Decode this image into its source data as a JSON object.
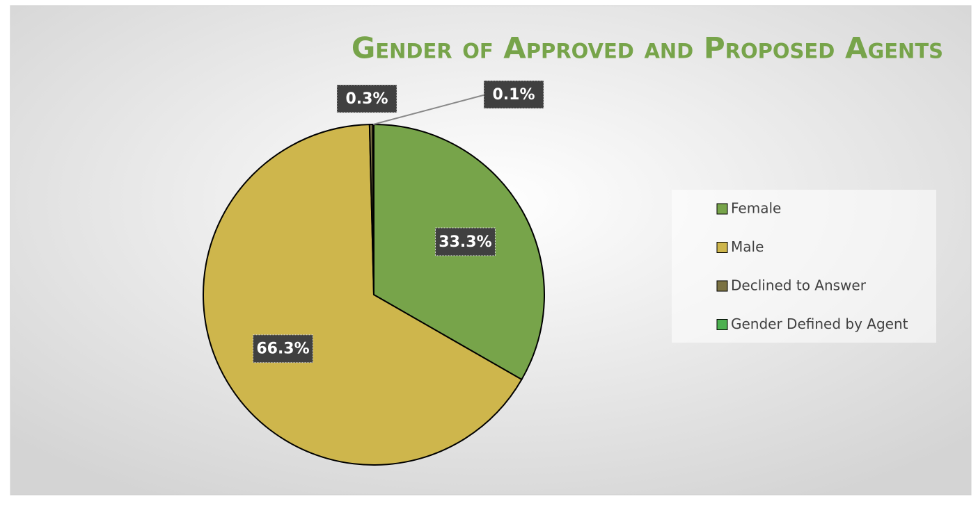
{
  "chart_data": {
    "type": "pie",
    "title": "Gender of Approved and Proposed Agents",
    "categories": [
      "Female",
      "Male",
      "Declined to Answer",
      "Gender Defined by Agent"
    ],
    "values": [
      33.3,
      66.3,
      0.3,
      0.1
    ],
    "value_labels": [
      "33.3%",
      "66.3%",
      "0.3%",
      "0.1%"
    ],
    "colors": [
      "#77a44a",
      "#ceb64c",
      "#7b7243",
      "#4cb050"
    ],
    "legend": "right"
  }
}
